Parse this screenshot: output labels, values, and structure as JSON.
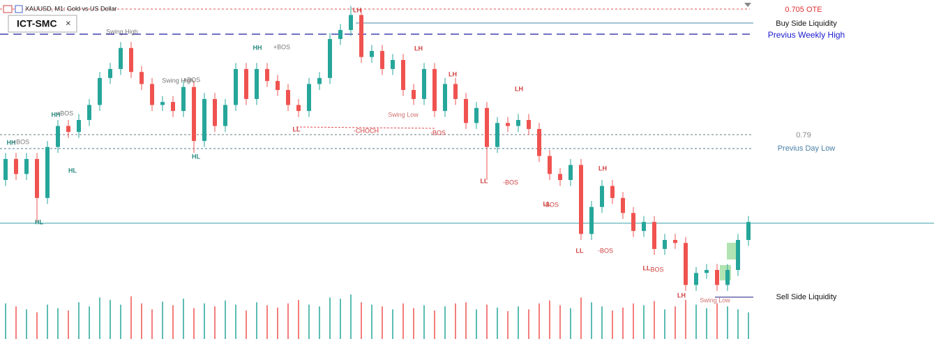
{
  "header": {
    "symbol": "XAUUSD, M1: Gold vs US Dollar",
    "indicator": "ICT-SMC",
    "close": "×"
  },
  "chart_data": {
    "type": "candlestick",
    "up_color": "#26a69a",
    "down_color": "#ef5350",
    "ylim": [
      0,
      100
    ],
    "volume_ylim": [
      0,
      100
    ],
    "open": [
      40,
      47,
      42,
      47,
      34,
      51,
      58,
      56,
      60,
      65,
      74,
      77,
      84,
      76,
      72,
      65,
      66,
      63,
      71,
      53,
      67,
      58,
      65,
      77,
      67,
      77,
      73,
      70,
      65,
      63,
      72,
      74,
      87,
      90,
      95,
      81,
      83,
      77,
      80,
      70,
      67,
      77,
      63,
      72,
      67,
      59,
      64,
      51,
      59,
      58,
      60,
      57,
      48,
      42,
      40,
      45,
      22,
      31,
      38,
      34,
      29,
      23,
      26,
      17,
      20,
      19,
      5,
      9,
      10,
      5,
      10,
      20
    ],
    "high": [
      49,
      49,
      49,
      49,
      53,
      60,
      60,
      62,
      67,
      76,
      79,
      86,
      86,
      78,
      74,
      68,
      68,
      73,
      73,
      69,
      69,
      67,
      79,
      79,
      79,
      79,
      75,
      72,
      67,
      74,
      76,
      89,
      92,
      98,
      97,
      85,
      85,
      82,
      82,
      72,
      79,
      79,
      74,
      74,
      69,
      66,
      66,
      61,
      61,
      62,
      62,
      59,
      50,
      44,
      47,
      47,
      33,
      40,
      40,
      36,
      31,
      28,
      28,
      22,
      22,
      21,
      11,
      12,
      12,
      12,
      22,
      28
    ],
    "low": [
      38,
      40,
      40,
      26,
      32,
      49,
      54,
      54,
      58,
      63,
      72,
      75,
      74,
      70,
      63,
      63,
      61,
      61,
      49,
      51,
      56,
      56,
      63,
      65,
      65,
      71,
      68,
      63,
      61,
      61,
      70,
      72,
      85,
      88,
      79,
      79,
      75,
      75,
      68,
      65,
      65,
      61,
      61,
      65,
      57,
      57,
      40,
      49,
      56,
      56,
      55,
      46,
      40,
      38,
      38,
      20,
      20,
      29,
      32,
      27,
      21,
      21,
      15,
      15,
      17,
      3,
      3,
      7,
      3,
      3,
      8,
      18
    ],
    "close": [
      47,
      42,
      47,
      34,
      51,
      58,
      56,
      60,
      65,
      74,
      77,
      84,
      76,
      72,
      65,
      66,
      63,
      71,
      53,
      67,
      58,
      65,
      77,
      67,
      77,
      73,
      70,
      65,
      63,
      72,
      74,
      87,
      90,
      95,
      81,
      83,
      77,
      80,
      70,
      67,
      77,
      63,
      72,
      67,
      59,
      64,
      51,
      59,
      58,
      60,
      57,
      48,
      42,
      40,
      45,
      22,
      31,
      38,
      34,
      29,
      23,
      26,
      17,
      20,
      19,
      5,
      9,
      10,
      5,
      10,
      20,
      26
    ],
    "volume": [
      60,
      55,
      50,
      45,
      58,
      52,
      48,
      62,
      55,
      70,
      66,
      58,
      72,
      60,
      50,
      63,
      57,
      68,
      52,
      60,
      55,
      65,
      58,
      48,
      62,
      57,
      53,
      60,
      66,
      58,
      55,
      70,
      68,
      75,
      62,
      58,
      55,
      50,
      60,
      52,
      57,
      48,
      55,
      60,
      62,
      50,
      58,
      53,
      47,
      55,
      50,
      60,
      65,
      57,
      52,
      70,
      62,
      55,
      48,
      53,
      60,
      57,
      64,
      50,
      55,
      66,
      58,
      52,
      60,
      55,
      50,
      45
    ],
    "annotations": [
      "HH",
      "+BOS",
      "HH",
      "+BOS",
      "HL",
      "HL",
      "Swing High",
      "Swing High",
      "+BOS",
      "HL",
      "HH",
      "+BOS",
      "LH",
      "LL",
      "-CHOCH",
      "LH",
      "Swing Low",
      "-BOS",
      "LH",
      "LH",
      "LL",
      "-BOS",
      "LL",
      "-BOS",
      "LH",
      "LL",
      "-BOS",
      "LL",
      "BOS",
      "LH",
      "Swing Low"
    ],
    "levels": [
      "0.705 OTE",
      "Buy Side Liquidity",
      "Previus Weekly High",
      "0.79",
      "Previus Day Low",
      "Sell Side Liquidity"
    ]
  }
}
